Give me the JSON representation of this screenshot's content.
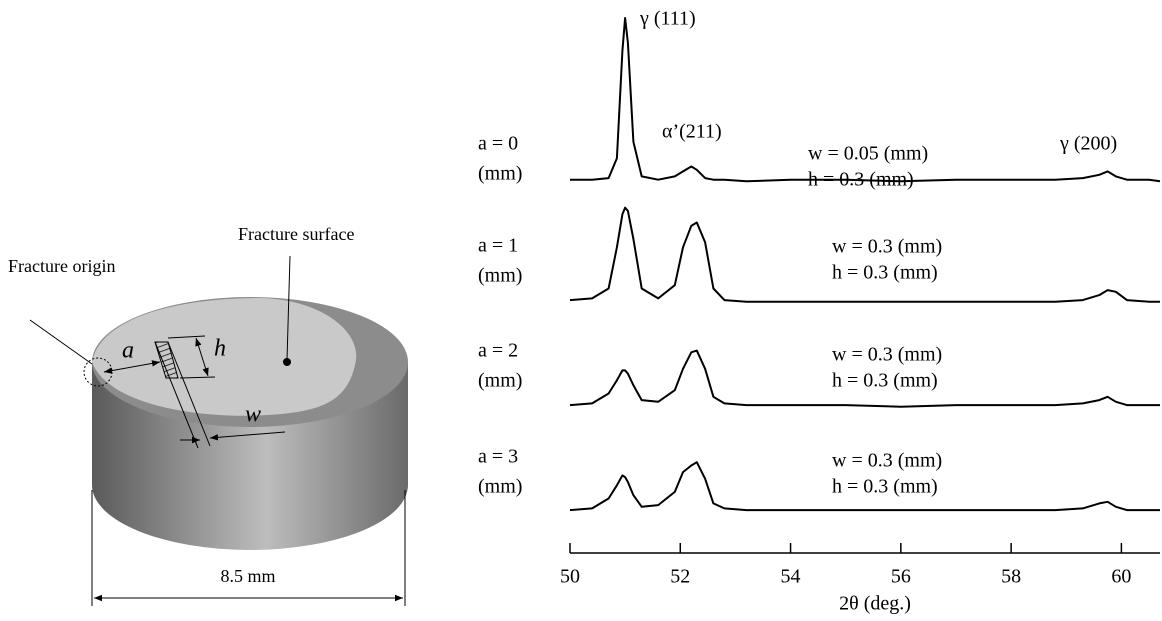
{
  "diagram": {
    "fracture_origin": "Fracture origin",
    "fracture_surface": "Fracture surface",
    "a": "a",
    "h": "h",
    "w": "w",
    "diameter": "8.5 mm"
  },
  "chart_data": {
    "type": "line",
    "xlabel": "2θ (deg.)",
    "xlim": [
      50,
      60.7
    ],
    "xticks": [
      50,
      52,
      54,
      56,
      58,
      60
    ],
    "ylim": [
      0,
      100
    ],
    "peak_labels": [
      "γ (111)",
      "α’(211)",
      "γ (200)"
    ],
    "x": [
      50,
      50.4,
      50.7,
      50.85,
      50.95,
      51.0,
      51.05,
      51.15,
      51.3,
      51.6,
      51.9,
      52.05,
      52.2,
      52.3,
      52.45,
      52.6,
      52.8,
      53.2,
      54,
      55,
      56,
      57,
      58,
      58.8,
      59.3,
      59.6,
      59.75,
      59.9,
      60.1,
      60.5,
      60.7
    ],
    "series": [
      {
        "label_lines": [
          "a = 0",
          "(mm)"
        ],
        "notes": [
          "w = 0.05 (mm)",
          "h = 0.3 (mm)"
        ],
        "color": "#000000",
        "values": [
          2,
          2,
          3,
          15,
          80,
          100,
          85,
          25,
          4,
          2,
          4,
          7,
          10,
          8,
          3,
          2,
          2,
          1,
          2,
          2,
          1,
          2,
          2,
          2,
          3,
          5,
          7,
          4,
          2,
          2,
          1
        ]
      },
      {
        "label_lines": [
          "a = 1",
          "(mm)"
        ],
        "notes": [
          "w = 0.3 (mm)",
          "h = 0.3 (mm)"
        ],
        "color": "#000000",
        "values": [
          3,
          4,
          10,
          35,
          55,
          59,
          57,
          40,
          10,
          4,
          12,
          35,
          48,
          50,
          38,
          10,
          3,
          2,
          2,
          2,
          2,
          2,
          2,
          2,
          3,
          6,
          9,
          8,
          3,
          2,
          2
        ]
      },
      {
        "label_lines": [
          "a = 2",
          "(mm)"
        ],
        "notes": [
          "w = 0.3 (mm)",
          "h = 0.3 (mm)"
        ],
        "color": "#000000",
        "values": [
          3,
          4,
          10,
          18,
          24,
          24,
          22,
          15,
          6,
          5,
          12,
          25,
          35,
          36,
          25,
          8,
          4,
          3,
          3,
          3,
          2,
          3,
          3,
          3,
          4,
          6,
          8,
          5,
          3,
          3,
          3
        ]
      },
      {
        "label_lines": [
          "a = 3",
          "(mm)"
        ],
        "notes": [
          "w = 0.3 (mm)",
          "h = 0.3 (mm)"
        ],
        "color": "#000000",
        "values": [
          3,
          4,
          10,
          18,
          24,
          23,
          20,
          12,
          5,
          6,
          14,
          26,
          30,
          32,
          22,
          7,
          4,
          3,
          3,
          3,
          3,
          3,
          3,
          3,
          4,
          7,
          8,
          5,
          3,
          3,
          3
        ]
      }
    ]
  }
}
